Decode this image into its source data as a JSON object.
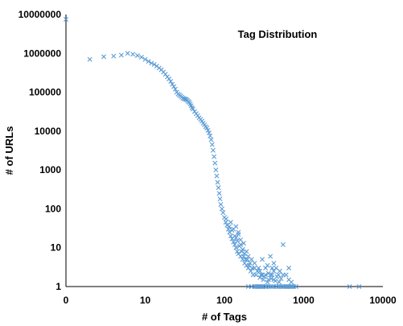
{
  "chart_data": {
    "type": "scatter",
    "title": "Tag Distribution",
    "xlabel": "# of Tags",
    "ylabel": "# of URLs",
    "x_scale": "log",
    "y_scale": "log",
    "x_tick_labels": [
      "0",
      "10",
      "100",
      "1000",
      "10000"
    ],
    "y_tick_labels": [
      "1",
      "10",
      "100",
      "1000",
      "10000",
      "100000",
      "1000000",
      "10000000"
    ],
    "xlim": [
      1,
      10000
    ],
    "ylim": [
      1,
      10000000
    ],
    "grid": false,
    "legend": "none",
    "marker": "x",
    "colors": {
      "marker": "#5b9bd5",
      "axis": "#000000",
      "text": "#000000"
    },
    "series": [
      {
        "values": [
          [
            1,
            7500000
          ],
          [
            2,
            700000
          ],
          [
            3,
            820000
          ],
          [
            4,
            850000
          ],
          [
            5,
            900000
          ],
          [
            6,
            1000000
          ],
          [
            7,
            950000
          ],
          [
            8,
            880000
          ],
          [
            9,
            800000
          ],
          [
            10,
            700000
          ],
          [
            11,
            620000
          ],
          [
            12,
            560000
          ],
          [
            13,
            520000
          ],
          [
            14,
            470000
          ],
          [
            15,
            420000
          ],
          [
            16,
            380000
          ],
          [
            17,
            330000
          ],
          [
            18,
            290000
          ],
          [
            19,
            250000
          ],
          [
            20,
            220000
          ],
          [
            21,
            190000
          ],
          [
            22,
            160000
          ],
          [
            23,
            140000
          ],
          [
            24,
            120000
          ],
          [
            25,
            100000
          ],
          [
            26,
            90000
          ],
          [
            27,
            85000
          ],
          [
            28,
            80000
          ],
          [
            29,
            75000
          ],
          [
            30,
            70000
          ],
          [
            31,
            68000
          ],
          [
            32,
            66000
          ],
          [
            33,
            65000
          ],
          [
            34,
            62000
          ],
          [
            35,
            58000
          ],
          [
            36,
            55000
          ],
          [
            37,
            50000
          ],
          [
            38,
            45000
          ],
          [
            39,
            40000
          ],
          [
            40,
            37000
          ],
          [
            42,
            32000
          ],
          [
            44,
            28000
          ],
          [
            46,
            25000
          ],
          [
            48,
            22000
          ],
          [
            50,
            20000
          ],
          [
            52,
            18000
          ],
          [
            54,
            16000
          ],
          [
            56,
            14500
          ],
          [
            58,
            13000
          ],
          [
            60,
            12000
          ],
          [
            62,
            10500
          ],
          [
            64,
            9000
          ],
          [
            66,
            7500
          ],
          [
            68,
            6000
          ],
          [
            70,
            4500
          ],
          [
            72,
            3200
          ],
          [
            74,
            2200
          ],
          [
            76,
            1500
          ],
          [
            78,
            1000
          ],
          [
            80,
            700
          ],
          [
            82,
            480
          ],
          [
            84,
            350
          ],
          [
            86,
            250
          ],
          [
            88,
            180
          ],
          [
            90,
            130
          ],
          [
            93,
            100
          ],
          [
            96,
            80
          ],
          [
            100,
            60
          ],
          [
            104,
            45
          ],
          [
            108,
            38
          ],
          [
            112,
            30
          ],
          [
            116,
            25
          ],
          [
            120,
            20
          ],
          [
            125,
            17
          ],
          [
            130,
            14
          ],
          [
            135,
            12
          ],
          [
            140,
            10
          ],
          [
            145,
            8
          ],
          [
            150,
            7
          ],
          [
            160,
            6
          ],
          [
            170,
            5
          ],
          [
            180,
            4
          ],
          [
            190,
            3.5
          ],
          [
            200,
            3
          ],
          [
            215,
            2.5
          ],
          [
            230,
            2
          ],
          [
            250,
            2
          ],
          [
            280,
            1.7
          ],
          [
            310,
            1.5
          ],
          [
            350,
            1.3
          ],
          [
            120,
            45
          ],
          [
            130,
            30
          ],
          [
            140,
            18
          ],
          [
            150,
            22
          ],
          [
            160,
            12
          ],
          [
            170,
            9
          ],
          [
            180,
            7
          ],
          [
            195,
            5
          ],
          [
            210,
            4
          ],
          [
            240,
            3
          ],
          [
            270,
            3
          ],
          [
            300,
            2
          ],
          [
            330,
            2
          ],
          [
            380,
            2
          ],
          [
            420,
            1.5
          ],
          [
            105,
            55
          ],
          [
            115,
            35
          ],
          [
            125,
            28
          ],
          [
            135,
            20
          ],
          [
            145,
            15
          ],
          [
            155,
            11
          ],
          [
            165,
            8
          ],
          [
            175,
            6
          ],
          [
            185,
            5
          ],
          [
            205,
            3.5
          ],
          [
            225,
            3
          ],
          [
            260,
            2.5
          ],
          [
            290,
            2
          ],
          [
            320,
            1.8
          ],
          [
            360,
            1.5
          ],
          [
            140,
            35
          ],
          [
            150,
            25
          ],
          [
            160,
            16
          ],
          [
            175,
            13
          ],
          [
            190,
            8
          ],
          [
            200,
            6
          ],
          [
            220,
            5
          ],
          [
            240,
            4
          ],
          [
            280,
            2.5
          ],
          [
            400,
            2
          ],
          [
            200,
            1
          ],
          [
            220,
            1
          ],
          [
            240,
            1
          ],
          [
            260,
            1
          ],
          [
            280,
            1
          ],
          [
            300,
            1
          ],
          [
            330,
            1
          ],
          [
            360,
            1
          ],
          [
            400,
            1
          ],
          [
            450,
            1
          ],
          [
            500,
            1
          ],
          [
            550,
            1
          ],
          [
            600,
            1
          ],
          [
            650,
            1
          ],
          [
            700,
            1
          ],
          [
            750,
            1
          ],
          [
            800,
            1
          ],
          [
            250,
            1
          ],
          [
            270,
            1
          ],
          [
            290,
            1
          ],
          [
            310,
            1
          ],
          [
            340,
            1
          ],
          [
            380,
            1
          ],
          [
            420,
            1
          ],
          [
            480,
            1
          ],
          [
            520,
            1
          ],
          [
            580,
            1
          ],
          [
            620,
            1
          ],
          [
            680,
            1
          ],
          [
            720,
            1
          ],
          [
            3800,
            1
          ],
          [
            5000,
            1
          ],
          [
            300,
            5
          ],
          [
            350,
            3.5
          ],
          [
            400,
            3
          ],
          [
            420,
            4
          ],
          [
            450,
            3
          ],
          [
            480,
            2
          ],
          [
            500,
            2.5
          ],
          [
            550,
            2
          ],
          [
            600,
            2
          ],
          [
            650,
            1.5
          ],
          [
            700,
            1.3
          ],
          [
            380,
            6
          ],
          [
            420,
            2.5
          ],
          [
            460,
            1.8
          ],
          [
            520,
            1.6
          ],
          [
            330,
            3
          ],
          [
            360,
            2.2
          ],
          [
            390,
            1.6
          ],
          [
            440,
            1.4
          ],
          [
            490,
            1.3
          ],
          [
            550,
            12
          ],
          [
            650,
            3
          ]
        ]
      }
    ]
  }
}
